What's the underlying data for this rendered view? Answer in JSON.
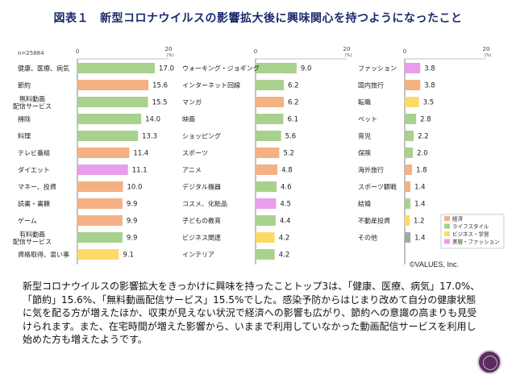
{
  "header": {
    "figure_label": "図表１",
    "title": "新型コロナウイルスの影響拡大後に興味関心を持つようになったこと"
  },
  "footer": {
    "copyright": "©VALUES, Inc.",
    "description": "新型コロナウイルスの影響拡大をきっかけに興味を持ったことトップ3は、「健康、医療、病気」17.0%、「節約」15.6%、「無料動画配信サービス」15.5%でした。感染予防からはじまり改めて自分の健康状態に気を配る方が増えたほか、収束が見えない状況で経済への影響も広がり、節約への意識の高まりも見受けられます。また、在宅時間が増えた影響から、いままで利用していなかった動画配信サービスを利用し始めた方も増えたようです。"
  },
  "colors": {
    "経済": "#f4b183",
    "ライフスタイル": "#a9d18e",
    "ビジネス・学習": "#ffd966",
    "美容・ファッション": "#e89ee8",
    "その他": "#a6a6a6"
  },
  "chart_data": {
    "type": "bar",
    "orientation": "horizontal",
    "sample_note": "n=25884",
    "unit": "(%)",
    "xlim": [
      0,
      20
    ],
    "axis_min_label": "0",
    "axis_max_label": "20",
    "legend": [
      "経済",
      "ライフスタイル",
      "ビジネス・学習",
      "美容・ファッション"
    ],
    "legend_placement": "bottom-right",
    "panels": [
      {
        "items": [
          {
            "label": [
              "健康、医療、病気"
            ],
            "value": 17.0,
            "value_label": "17.0",
            "category": "ライフスタイル"
          },
          {
            "label": [
              "節約"
            ],
            "value": 15.6,
            "value_label": "15.6",
            "category": "経済"
          },
          {
            "label": [
              "無料動画",
              "配信サービス"
            ],
            "value": 15.5,
            "value_label": "15.5",
            "category": "ライフスタイル"
          },
          {
            "label": [
              "掃除"
            ],
            "value": 14.0,
            "value_label": "14.0",
            "category": "ライフスタイル"
          },
          {
            "label": [
              "料理"
            ],
            "value": 13.3,
            "value_label": "13.3",
            "category": "ライフスタイル"
          },
          {
            "label": [
              "テレビ番組"
            ],
            "value": 11.4,
            "value_label": "11.4",
            "category": "経済"
          },
          {
            "label": [
              "ダイエット"
            ],
            "value": 11.1,
            "value_label": "11.1",
            "category": "美容・ファッション"
          },
          {
            "label": [
              "マネー、投資"
            ],
            "value": 10.0,
            "value_label": "10.0",
            "category": "経済"
          },
          {
            "label": [
              "読書・書籍"
            ],
            "value": 9.9,
            "value_label": "9.9",
            "category": "経済"
          },
          {
            "label": [
              "ゲーム"
            ],
            "value": 9.9,
            "value_label": "9.9",
            "category": "経済"
          },
          {
            "label": [
              "有料動画",
              "配信サービス"
            ],
            "value": 9.9,
            "value_label": "9.9",
            "category": "ライフスタイル"
          },
          {
            "label": [
              "資格取得、習い事"
            ],
            "value": 9.1,
            "value_label": "9.1",
            "category": "ビジネス・学習"
          }
        ]
      },
      {
        "items": [
          {
            "label": [
              "ウォーキング・ジョギング"
            ],
            "value": 9.0,
            "value_label": "9.0",
            "category": "ライフスタイル"
          },
          {
            "label": [
              "インターネット回線"
            ],
            "value": 6.2,
            "value_label": "6.2",
            "category": "ライフスタイル"
          },
          {
            "label": [
              "マンガ"
            ],
            "value": 6.2,
            "value_label": "6.2",
            "category": "経済"
          },
          {
            "label": [
              "映画"
            ],
            "value": 6.1,
            "value_label": "6.1",
            "category": "ライフスタイル"
          },
          {
            "label": [
              "ショッピング"
            ],
            "value": 5.6,
            "value_label": "5.6",
            "category": "ライフスタイル"
          },
          {
            "label": [
              "スポーツ"
            ],
            "value": 5.2,
            "value_label": "5.2",
            "category": "経済"
          },
          {
            "label": [
              "アニメ"
            ],
            "value": 4.8,
            "value_label": "4.8",
            "category": "経済"
          },
          {
            "label": [
              "デジタル機器"
            ],
            "value": 4.6,
            "value_label": "4.6",
            "category": "ライフスタイル"
          },
          {
            "label": [
              "コスメ、化粧品"
            ],
            "value": 4.5,
            "value_label": "4.5",
            "category": "美容・ファッション"
          },
          {
            "label": [
              "子どもの教育"
            ],
            "value": 4.4,
            "value_label": "4.4",
            "category": "ライフスタイル"
          },
          {
            "label": [
              "ビジネス関連"
            ],
            "value": 4.2,
            "value_label": "4.2",
            "category": "ビジネス・学習"
          },
          {
            "label": [
              "インテリア"
            ],
            "value": 4.2,
            "value_label": "4.2",
            "category": "ライフスタイル"
          }
        ]
      },
      {
        "items": [
          {
            "label": [
              "ファッション"
            ],
            "value": 3.8,
            "value_label": "3.8",
            "category": "美容・ファッション"
          },
          {
            "label": [
              "国内旅行"
            ],
            "value": 3.8,
            "value_label": "3.8",
            "category": "経済"
          },
          {
            "label": [
              "転職"
            ],
            "value": 3.5,
            "value_label": "3.5",
            "category": "ビジネス・学習"
          },
          {
            "label": [
              "ペット"
            ],
            "value": 2.8,
            "value_label": "2.8",
            "category": "ライフスタイル"
          },
          {
            "label": [
              "育児"
            ],
            "value": 2.2,
            "value_label": "2.2",
            "category": "ライフスタイル"
          },
          {
            "label": [
              "保険"
            ],
            "value": 2.0,
            "value_label": "2.0",
            "category": "ライフスタイル"
          },
          {
            "label": [
              "海外旅行"
            ],
            "value": 1.8,
            "value_label": "1.8",
            "category": "経済"
          },
          {
            "label": [
              "スポーツ観戦"
            ],
            "value": 1.4,
            "value_label": "1.4",
            "category": "経済"
          },
          {
            "label": [
              "結婚"
            ],
            "value": 1.4,
            "value_label": "1.4",
            "category": "ライフスタイル"
          },
          {
            "label": [
              "不動産投資"
            ],
            "value": 1.2,
            "value_label": "1.2",
            "category": "ビジネス・学習"
          },
          {
            "label": [
              "その他"
            ],
            "value": 1.4,
            "value_label": "1.4",
            "category": "その他"
          }
        ]
      }
    ]
  }
}
